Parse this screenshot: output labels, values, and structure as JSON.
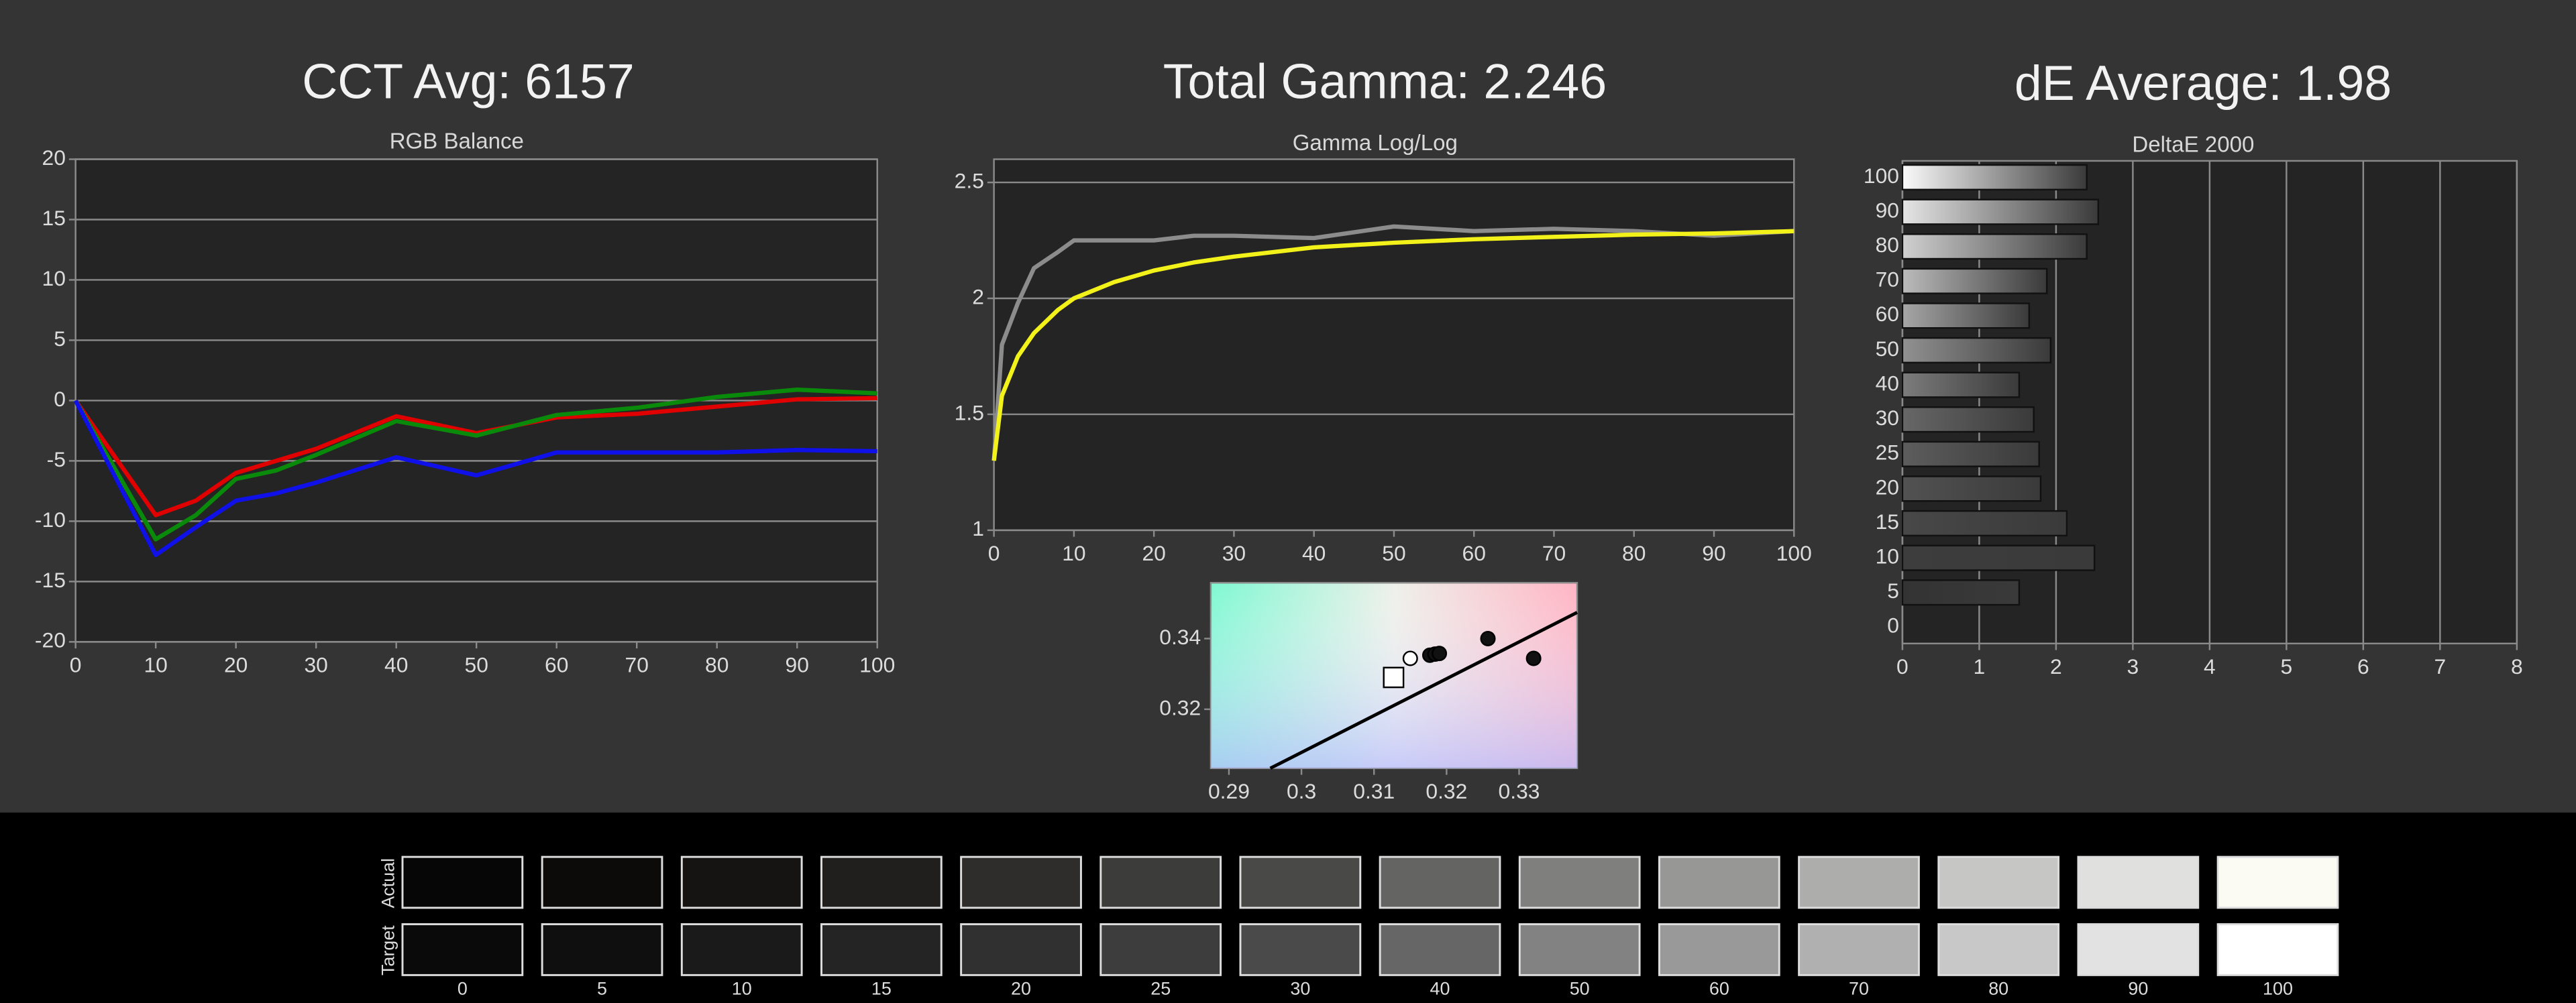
{
  "headings": [
    "CCT Avg: 6157",
    "Total Gamma: 2.246",
    "dE Average: 1.98"
  ],
  "chart_data": [
    {
      "type": "line",
      "title": "RGB Balance",
      "x": [
        0,
        10,
        15,
        20,
        25,
        30,
        40,
        50,
        60,
        70,
        80,
        90,
        100
      ],
      "series": [
        {
          "color": "#e00000",
          "values": [
            0,
            -9.5,
            -8.3,
            -6,
            -5,
            -4,
            -1.3,
            -2.7,
            -1.4,
            -1.1,
            -0.5,
            0.1,
            0.2
          ]
        },
        {
          "color": "#0a8a0a",
          "values": [
            0,
            -11.5,
            -9.5,
            -6.5,
            -5.8,
            -4.5,
            -1.7,
            -2.9,
            -1.2,
            -0.6,
            0.3,
            0.9,
            0.6
          ]
        },
        {
          "color": "#1010e8",
          "values": [
            0,
            -12.8,
            -10.5,
            -8.3,
            -7.7,
            -6.8,
            -4.7,
            -6.2,
            -4.3,
            -4.3,
            -4.3,
            -4.1,
            -4.2
          ]
        }
      ],
      "xlim": [
        0,
        100
      ],
      "xticks": [
        0,
        10,
        20,
        30,
        40,
        50,
        60,
        70,
        80,
        90,
        100
      ],
      "ylim": [
        -20,
        20
      ],
      "yticks": [
        -20,
        -15,
        -10,
        -5,
        0,
        5,
        10,
        15,
        20
      ],
      "grid": "y"
    },
    {
      "type": "line",
      "title": "Gamma Log/Log",
      "x": [
        0,
        1,
        3,
        5,
        8,
        10,
        15,
        20,
        25,
        30,
        40,
        50,
        60,
        70,
        80,
        90,
        100
      ],
      "series": [
        {
          "color": "#8c8c8c",
          "values": [
            1.3,
            1.8,
            1.98,
            2.13,
            2.2,
            2.25,
            2.25,
            2.25,
            2.27,
            2.27,
            2.26,
            2.31,
            2.29,
            2.3,
            2.29,
            2.27,
            2.29
          ]
        },
        {
          "color": "#f2f21a",
          "values": [
            1.3,
            1.58,
            1.75,
            1.85,
            1.95,
            2.0,
            2.07,
            2.12,
            2.155,
            2.18,
            2.22,
            2.24,
            2.255,
            2.265,
            2.275,
            2.28,
            2.29
          ]
        }
      ],
      "xlim": [
        0,
        100
      ],
      "xticks": [
        0,
        10,
        20,
        30,
        40,
        50,
        60,
        70,
        80,
        90,
        100
      ],
      "ylim": [
        1,
        2.6
      ],
      "yticks": [
        1,
        1.5,
        2,
        2.5
      ],
      "grid": "y"
    },
    {
      "type": "scatter",
      "series": [
        {
          "marker": "line",
          "color": "#000000",
          "x": [
            0.2957,
            0.338
          ],
          "values": [
            0.3033,
            0.3474
          ]
        },
        {
          "marker": "square",
          "color": "#ffffff",
          "x": [
            0.3127
          ],
          "values": [
            0.329
          ]
        },
        {
          "marker": "circle",
          "color": "#111111",
          "x": [
            0.3257,
            0.332,
            0.3177,
            0.3184,
            0.319
          ],
          "values": [
            0.34,
            0.3344,
            0.3353,
            0.3356,
            0.3358
          ]
        },
        {
          "marker": "circle",
          "color": "#ffffff",
          "x": [
            0.315
          ],
          "values": [
            0.3344
          ]
        }
      ],
      "xlim": [
        0.2875,
        0.338
      ],
      "xticks": [
        0.29,
        0.3,
        0.31,
        0.32,
        0.33
      ],
      "ylim": [
        0.3033,
        0.3558
      ],
      "yticks": [
        0.32,
        0.34
      ]
    },
    {
      "type": "hbar",
      "title": "DeltaE 2000",
      "categories": [
        "100",
        "90",
        "80",
        "70",
        "60",
        "50",
        "40",
        "30",
        "25",
        "20",
        "15",
        "10",
        "5",
        "0"
      ],
      "values": [
        2.4,
        2.55,
        2.4,
        1.88,
        1.65,
        1.93,
        1.52,
        1.71,
        1.78,
        1.8,
        2.14,
        2.5,
        1.52,
        0
      ],
      "xlim": [
        0,
        8
      ],
      "xticks": [
        0,
        1,
        2,
        3,
        4,
        5,
        6,
        7,
        8
      ],
      "grid": "x"
    }
  ],
  "swatches": {
    "row_labels": [
      "Actual",
      "Target"
    ],
    "levels": [
      "0",
      "5",
      "10",
      "15",
      "20",
      "25",
      "30",
      "40",
      "50",
      "60",
      "70",
      "80",
      "90",
      "100"
    ],
    "actual": [
      "#060606",
      "#0d0b09",
      "#151412",
      "#201f1d",
      "#2e2d2b",
      "#3c3c3a",
      "#494947",
      "#646462",
      "#7f7f7d",
      "#979795",
      "#adadab",
      "#c6c6c4",
      "#e0e0de",
      "#fbfbf3"
    ],
    "target": [
      "#0a0a0a",
      "#0f0f0f",
      "#1a1a1a",
      "#242424",
      "#303030",
      "#3d3d3d",
      "#4a4a4a",
      "#666666",
      "#828282",
      "#999999",
      "#b0b0b0",
      "#c8c8c8",
      "#e2e2e2",
      "#ffffff"
    ]
  }
}
